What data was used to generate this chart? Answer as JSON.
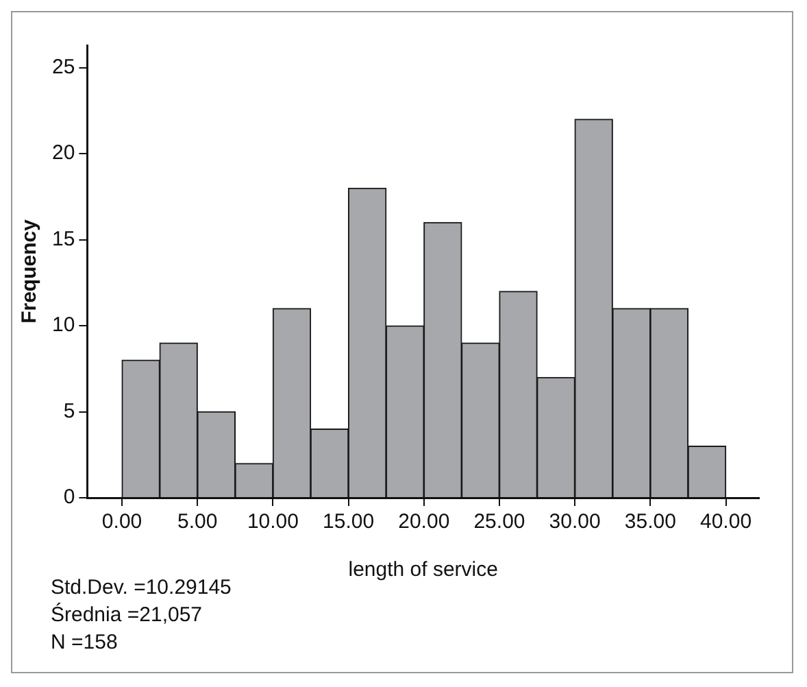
{
  "chart_data": {
    "type": "histogram",
    "xlabel": "length of service",
    "ylabel": "Frequency",
    "bins": [
      0,
      2.5,
      5,
      7.5,
      10,
      12.5,
      15,
      17.5,
      20,
      22.5,
      25,
      27.5,
      30,
      32.5,
      35,
      37.5,
      40
    ],
    "values": [
      8,
      9,
      5,
      2,
      11,
      4,
      18,
      10,
      16,
      9,
      12,
      7,
      22,
      11,
      11,
      3
    ],
    "color": "#a7a8ab",
    "xlim": [
      -2.3,
      42.2
    ],
    "xticks": [
      {
        "value": 0,
        "label": "0.00"
      },
      {
        "value": 5,
        "label": "5.00"
      },
      {
        "value": 10,
        "label": "10.00"
      },
      {
        "value": 15,
        "label": "15.00"
      },
      {
        "value": 20,
        "label": "20.00"
      },
      {
        "value": 25,
        "label": "25.00"
      },
      {
        "value": 30,
        "label": "30.00"
      },
      {
        "value": 35,
        "label": "35.00"
      },
      {
        "value": 40,
        "label": "40.00"
      }
    ],
    "ylim": [
      0,
      26.3
    ],
    "yticks": [
      0,
      5,
      10,
      15,
      20,
      25
    ],
    "grid": false,
    "annotations": [
      "Std.Dev. =10.29145",
      "Średnia =21,057",
      "N =158"
    ]
  }
}
